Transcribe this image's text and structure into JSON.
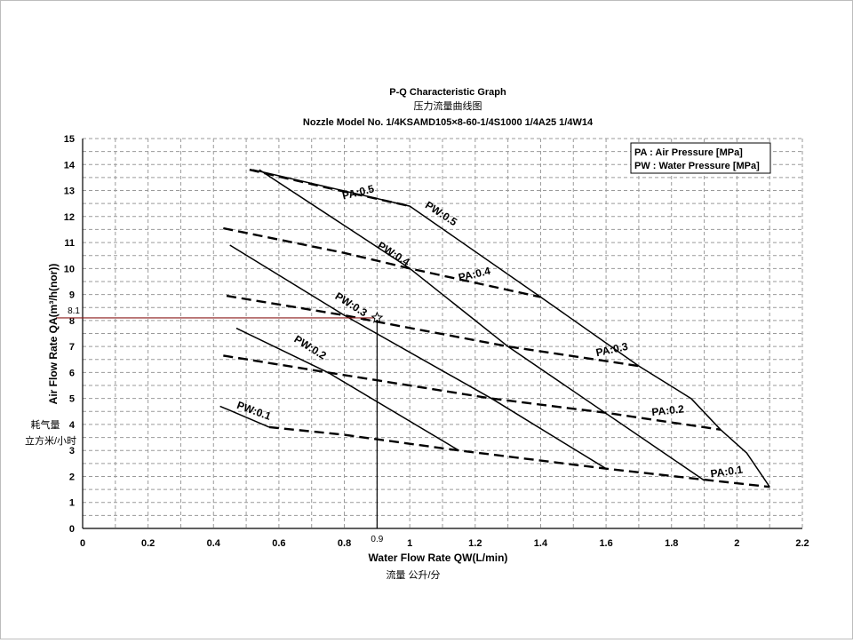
{
  "chart_data": {
    "type": "line",
    "title": "P-Q Characteristic Graph",
    "subtitle_cn": "压力流量曲线图",
    "subtitle_model": "Nozzle Model No. 1/4KSAMD105×8-60-1/4S1000  1/4A25 1/4W14",
    "xlabel": "Water Flow Rate  QW(L/min)",
    "xlabel_cn": "流量 公升/分",
    "ylabel": "Air Flow Rate  QA(m³/h(nor))",
    "ylabel_cn_1": "耗气量",
    "ylabel_cn_2": "立方米/小时",
    "xlim": [
      0,
      2.2
    ],
    "ylim": [
      0,
      15
    ],
    "xticks": [
      "0",
      "0.2",
      "0.4",
      "0.6",
      "0.8",
      "1",
      "1.2",
      "1.4",
      "1.6",
      "1.8",
      "2",
      "2.2"
    ],
    "xtick_values": [
      0,
      0.2,
      0.4,
      0.6,
      0.8,
      1.0,
      1.2,
      1.4,
      1.6,
      1.8,
      2.0,
      2.2
    ],
    "yticks": [
      "0",
      "1",
      "2",
      "3",
      "4",
      "5",
      "6",
      "7",
      "8",
      "9",
      "10",
      "11",
      "12",
      "13",
      "14",
      "15"
    ],
    "ytick_values": [
      0,
      1,
      2,
      3,
      4,
      5,
      6,
      7,
      8,
      9,
      10,
      11,
      12,
      13,
      14,
      15
    ],
    "legend": {
      "placement": "top-right",
      "lines": [
        "PA : Air Pressure [MPa]",
        "PW : Water Pressure [MPa]"
      ]
    },
    "series": [
      {
        "name": "PA:0.1",
        "style": "dashed",
        "points": [
          [
            0.57,
            3.9
          ],
          [
            0.8,
            3.6
          ],
          [
            1.15,
            3.0
          ],
          [
            1.6,
            2.3
          ],
          [
            1.92,
            1.85
          ],
          [
            2.1,
            1.6
          ]
        ]
      },
      {
        "name": "PA:0.2",
        "style": "dashed",
        "points": [
          [
            0.43,
            6.65
          ],
          [
            0.75,
            6.0
          ],
          [
            1.25,
            5.0
          ],
          [
            1.6,
            4.45
          ],
          [
            1.95,
            3.8
          ]
        ]
      },
      {
        "name": "PA:0.3",
        "style": "dashed",
        "points": [
          [
            0.44,
            8.95
          ],
          [
            0.8,
            8.2
          ],
          [
            0.9,
            7.95
          ],
          [
            1.3,
            7.0
          ],
          [
            1.7,
            6.25
          ]
        ]
      },
      {
        "name": "PA:0.4",
        "style": "dashed",
        "points": [
          [
            0.43,
            11.55
          ],
          [
            0.8,
            10.6
          ],
          [
            1.0,
            10.0
          ],
          [
            1.4,
            8.9
          ]
        ]
      },
      {
        "name": "PA:0.5",
        "style": "dashed",
        "points": [
          [
            0.51,
            13.8
          ],
          [
            0.75,
            13.1
          ],
          [
            1.0,
            12.4
          ]
        ]
      },
      {
        "name": "PW:0.1",
        "style": "solid",
        "points": [
          [
            0.42,
            4.7
          ],
          [
            0.57,
            3.9
          ]
        ]
      },
      {
        "name": "PW:0.2",
        "style": "solid",
        "points": [
          [
            0.47,
            7.7
          ],
          [
            0.75,
            6.0
          ],
          [
            1.15,
            3.0
          ]
        ]
      },
      {
        "name": "PW:0.3",
        "style": "solid",
        "points": [
          [
            0.45,
            10.9
          ],
          [
            0.8,
            8.2
          ],
          [
            1.25,
            5.0
          ],
          [
            1.6,
            2.3
          ]
        ]
      },
      {
        "name": "PW:0.4",
        "style": "solid",
        "points": [
          [
            0.54,
            13.8
          ],
          [
            1.0,
            10.0
          ],
          [
            1.3,
            7.0
          ],
          [
            1.9,
            1.85
          ]
        ]
      },
      {
        "name": "PW:0.5",
        "style": "solid",
        "points": [
          [
            0.52,
            13.8
          ],
          [
            1.0,
            12.4
          ],
          [
            1.4,
            8.9
          ],
          [
            1.7,
            6.25
          ],
          [
            1.86,
            5.0
          ],
          [
            1.95,
            3.8
          ],
          [
            2.03,
            2.9
          ],
          [
            2.1,
            1.6
          ]
        ]
      }
    ],
    "curve_labels": [
      {
        "text": "PA:0.5",
        "at": [
          0.845,
          12.8
        ],
        "angle": -14
      },
      {
        "text": "PW:0.5",
        "at": [
          1.09,
          12.0
        ],
        "angle": 33
      },
      {
        "text": "PW:0.4",
        "at": [
          0.945,
          10.45
        ],
        "angle": 32
      },
      {
        "text": "PA:0.4",
        "at": [
          1.2,
          9.65
        ],
        "angle": -13
      },
      {
        "text": "PW:0.3",
        "at": [
          0.815,
          8.5
        ],
        "angle": 32
      },
      {
        "text": "PA:0.3",
        "at": [
          1.62,
          6.75
        ],
        "angle": -12
      },
      {
        "text": "PW:0.2",
        "at": [
          0.69,
          6.85
        ],
        "angle": 32
      },
      {
        "text": "PA:0.2",
        "at": [
          1.79,
          4.4
        ],
        "angle": -6
      },
      {
        "text": "PW:0.1",
        "at": [
          0.52,
          4.4
        ],
        "angle": 20
      },
      {
        "text": "PA:0.1",
        "at": [
          1.97,
          2.05
        ],
        "angle": -8
      }
    ],
    "operating_point": {
      "x": 0.9,
      "y": 8.1,
      "x_label": "0.9",
      "y_label": "8.1"
    }
  }
}
